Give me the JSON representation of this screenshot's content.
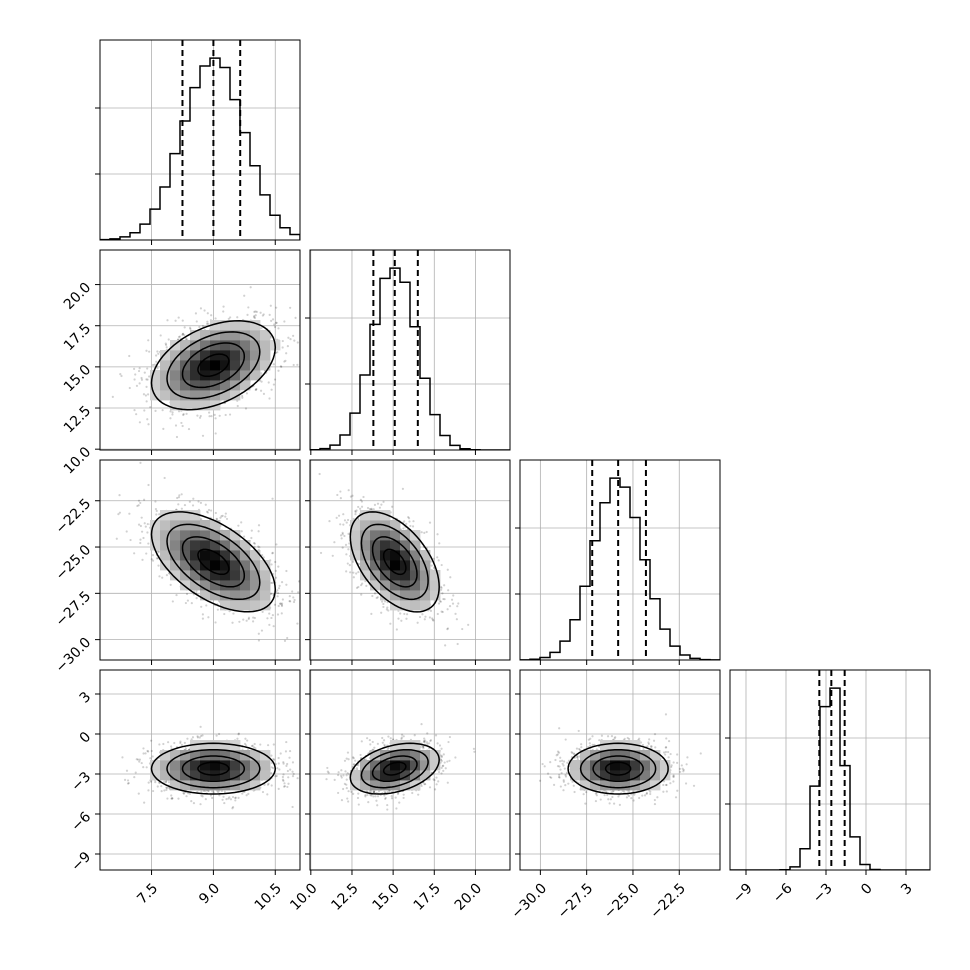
{
  "chart_data": {
    "type": "corner",
    "parameters": [
      {
        "ticks": [
          7.5,
          9.0,
          10.5
        ],
        "tick_labels": [
          "7.5",
          "9.0",
          "10.5"
        ],
        "range": [
          6.25,
          11.1
        ],
        "mean": 9.0,
        "sigma": 0.75,
        "quantiles": [
          8.25,
          9.0,
          9.65
        ]
      },
      {
        "ticks": [
          10.0,
          12.5,
          15.0,
          17.5,
          20.0
        ],
        "tick_labels": [
          "10.0",
          "12.5",
          "15.0",
          "17.5",
          "20.0"
        ],
        "range": [
          9.95,
          22.1
        ],
        "mean": 15.1,
        "sigma": 1.35,
        "quantiles": [
          13.8,
          15.1,
          16.5
        ]
      },
      {
        "ticks": [
          -30.0,
          -27.5,
          -25.0,
          -22.5
        ],
        "tick_labels": [
          "−30.0",
          "−27.5",
          "−25.0",
          "−22.5"
        ],
        "range": [
          -31.1,
          -20.3
        ],
        "mean": -25.8,
        "sigma": 1.35,
        "quantiles": [
          -27.2,
          -25.8,
          -24.3
        ]
      },
      {
        "ticks": [
          -9,
          -6,
          -3,
          0,
          3
        ],
        "tick_labels": [
          "−9",
          "−6",
          "−3",
          "0",
          "3"
        ],
        "range": [
          -10.2,
          4.8
        ],
        "mean": -2.6,
        "sigma": 0.95,
        "quantiles": [
          -3.5,
          -2.6,
          -1.6
        ]
      }
    ],
    "correlations": [
      [
        1.0,
        0.4,
        -0.55,
        0.0
      ],
      [
        0.4,
        1.0,
        -0.5,
        0.35
      ],
      [
        -0.55,
        -0.5,
        1.0,
        0.0
      ],
      [
        0.0,
        0.35,
        0.0,
        1.0
      ]
    ],
    "histogram": {
      "bins": 20,
      "style": "step"
    },
    "quantiles": [
      0.16,
      0.5,
      0.84
    ],
    "contour_levels_sigma": [
      0.5,
      1.0,
      1.5,
      2.0
    ],
    "grid": true,
    "xlabels": [],
    "title": ""
  }
}
